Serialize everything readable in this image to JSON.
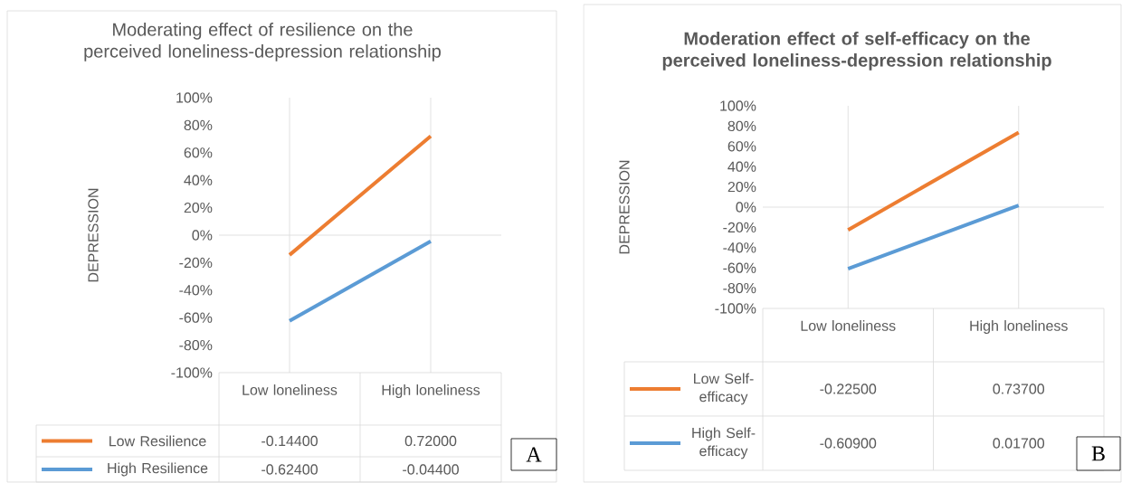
{
  "chart_data": [
    {
      "type": "line",
      "title": "Moderating effect of resilience on the perceived loneliness-depression relationship",
      "ylabel": "DEPRESSION",
      "categories": [
        "Low loneliness",
        "High loneliness"
      ],
      "series": [
        {
          "name": "Low Resilience",
          "color": "#ed7d31",
          "values": [
            -0.144,
            0.72
          ],
          "value_labels": [
            "-0.14400",
            "0.72000"
          ]
        },
        {
          "name": "High Resilience",
          "color": "#5b9bd5",
          "values": [
            -0.624,
            -0.044
          ],
          "value_labels": [
            "-0.62400",
            "-0.04400"
          ]
        }
      ],
      "ylim": [
        -1,
        1
      ],
      "yticks": [
        {
          "value": -1,
          "label": "-100%"
        },
        {
          "value": -0.8,
          "label": "-80%"
        },
        {
          "value": -0.6,
          "label": "-60%"
        },
        {
          "value": -0.4,
          "label": "-40%"
        },
        {
          "value": -0.2,
          "label": "-20%"
        },
        {
          "value": 0,
          "label": "0%"
        },
        {
          "value": 0.2,
          "label": "20%"
        },
        {
          "value": 0.4,
          "label": "40%"
        },
        {
          "value": 0.6,
          "label": "60%"
        },
        {
          "value": 0.8,
          "label": "80%"
        },
        {
          "value": 1,
          "label": "100%"
        }
      ],
      "ref_lines": [
        {
          "axis": "y",
          "value": 0,
          "color": "#d9d9d9"
        }
      ],
      "grid": "x",
      "legend": "bottom",
      "annotations": [
        "A"
      ]
    },
    {
      "type": "line",
      "title": "Moderation effect of self-efficacy on the perceived loneliness-depression relationship",
      "ylabel": "DEPRESSION",
      "categories": [
        "Low loneliness",
        "High loneliness"
      ],
      "series": [
        {
          "name": "Low Self-efficacy",
          "color": "#ed7d31",
          "values": [
            -0.225,
            0.737
          ],
          "value_labels": [
            "-0.22500",
            "0.73700"
          ]
        },
        {
          "name": "High Self-efficacy",
          "color": "#5b9bd5",
          "values": [
            -0.609,
            0.017
          ],
          "value_labels": [
            "-0.60900",
            "0.01700"
          ]
        }
      ],
      "ylim": [
        -1,
        1
      ],
      "yticks": [
        {
          "value": -1,
          "label": "-100%"
        },
        {
          "value": -0.8,
          "label": "-80%"
        },
        {
          "value": -0.6,
          "label": "-60%"
        },
        {
          "value": -0.4,
          "label": "-40%"
        },
        {
          "value": -0.2,
          "label": "-20%"
        },
        {
          "value": 0,
          "label": "0%"
        },
        {
          "value": 0.2,
          "label": "20%"
        },
        {
          "value": 0.4,
          "label": "40%"
        },
        {
          "value": 0.6,
          "label": "60%"
        },
        {
          "value": 0.8,
          "label": "80%"
        },
        {
          "value": 1,
          "label": "100%"
        }
      ],
      "ref_lines": [
        {
          "axis": "y",
          "value": 0,
          "color": "#d9d9d9"
        }
      ],
      "grid": "x",
      "legend": "bottom",
      "annotations": [
        "B"
      ]
    }
  ]
}
